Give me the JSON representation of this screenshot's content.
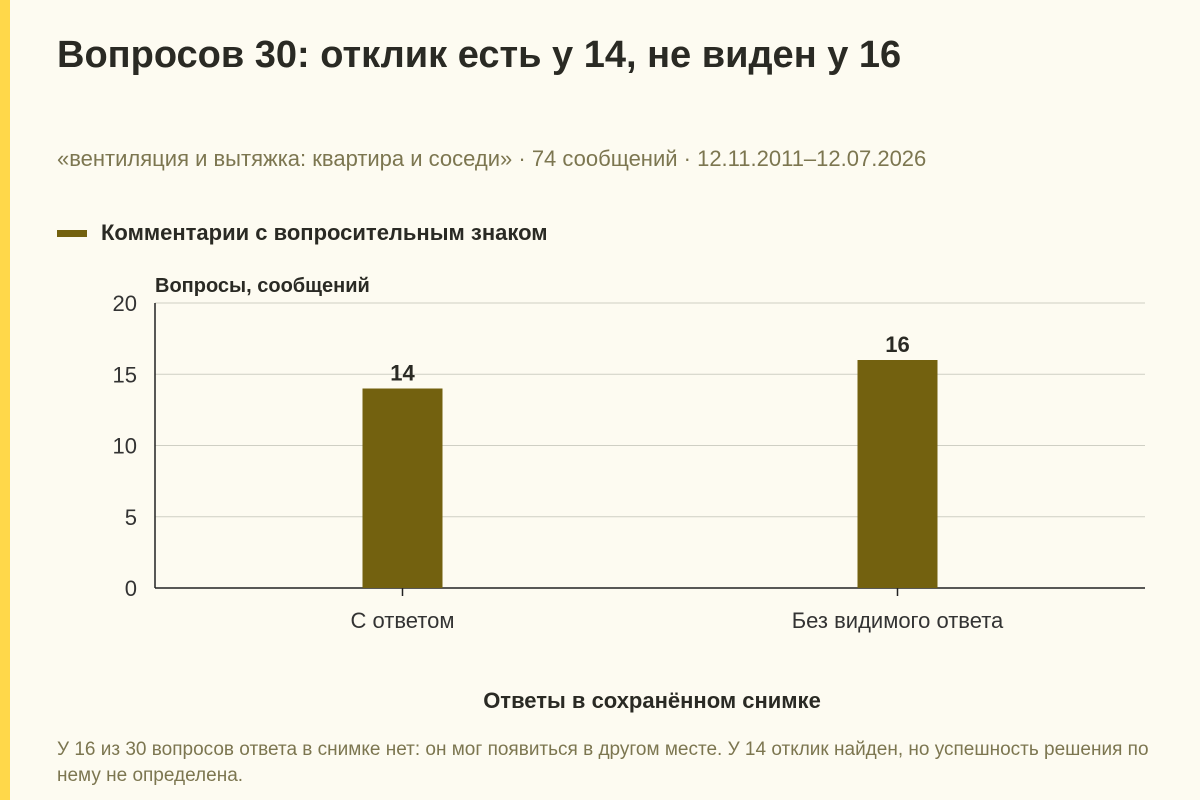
{
  "chart_data": {
    "type": "bar",
    "title": "Вопросов 30: отклик есть у 14, не виден у 16",
    "subtitle": "«вентиляция и вытяжка: квартира и соседи» · 74 сообщений · 12.11.2011–12.07.2026",
    "categories": [
      "С ответом",
      "Без видимого ответа"
    ],
    "series": [
      {
        "name": "Комментарии с вопросительным знаком",
        "values": [
          14,
          16
        ],
        "color": "#73610f"
      }
    ],
    "ylabel": "Вопросы, сообщений",
    "xlabel": "Ответы в сохранённом снимке",
    "ylim": [
      0,
      20
    ],
    "yticks": [
      0,
      5,
      10,
      15,
      20
    ],
    "grid": true,
    "legend_position": "top-left"
  },
  "footnote": "У 16 из 30 вопросов ответа в снимке нет: он мог появиться в другом месте. У 14 отклик найден, но успешность решения по нему не определена.",
  "colors": {
    "accent": "#ffd84a",
    "bar": "#73610f",
    "background": "#fdfbf1"
  }
}
